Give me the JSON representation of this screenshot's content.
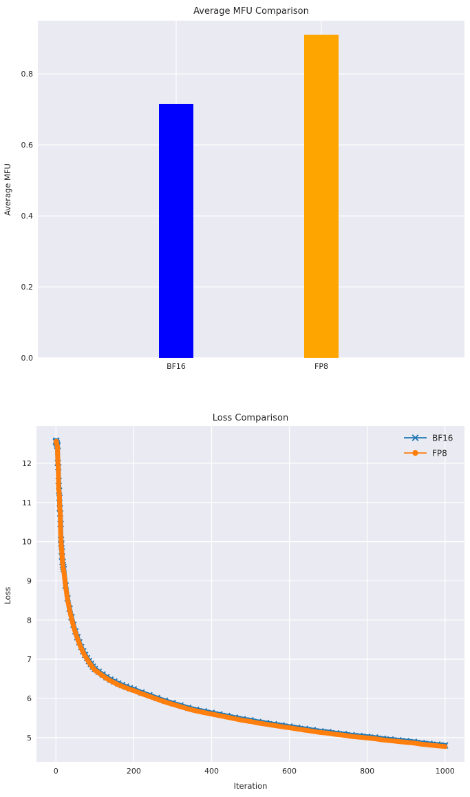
{
  "style": {
    "figure_bg": "#ffffff",
    "axes_bg": "#eaeaf2",
    "grid_color": "#ffffff",
    "text_color": "#262626",
    "bar_blue": "#0000ff",
    "bar_orange": "#ffa500",
    "line_blue": "#1f77b4",
    "line_orange": "#ff7f0e"
  },
  "chart_data": [
    {
      "type": "bar",
      "title": "Average MFU Comparison",
      "xlabel": "",
      "ylabel": "Average MFU",
      "categories": [
        "BF16",
        "FP8"
      ],
      "values": [
        0.715,
        0.91
      ],
      "bar_colors": [
        "#0000ff",
        "#ffa500"
      ],
      "yticks": [
        0.0,
        0.2,
        0.4,
        0.6,
        0.8
      ],
      "ytick_labels": [
        "0.0",
        "0.2",
        "0.4",
        "0.6",
        "0.8"
      ],
      "ylim": [
        0,
        0.95
      ],
      "grid": true,
      "legend": null
    },
    {
      "type": "line",
      "title": "Loss Comparison",
      "xlabel": "Iteration",
      "ylabel": "Loss",
      "xlim": [
        -50,
        1050
      ],
      "ylim": [
        4.38,
        12.95
      ],
      "xticks": [
        0,
        200,
        400,
        600,
        800,
        1000
      ],
      "yticks": [
        5,
        6,
        7,
        8,
        9,
        10,
        11,
        12
      ],
      "grid": true,
      "legend_position": "upper right",
      "x": [
        0,
        1,
        2,
        3,
        4,
        5,
        6,
        7,
        8,
        9,
        10,
        11,
        12,
        13,
        14,
        15,
        16,
        17,
        18,
        19,
        20,
        25,
        30,
        35,
        40,
        45,
        50,
        55,
        60,
        65,
        70,
        75,
        80,
        85,
        90,
        95,
        100,
        110,
        120,
        130,
        140,
        150,
        160,
        170,
        180,
        190,
        200,
        220,
        240,
        260,
        280,
        300,
        320,
        340,
        360,
        380,
        400,
        420,
        440,
        460,
        480,
        500,
        520,
        540,
        560,
        580,
        600,
        620,
        640,
        660,
        680,
        700,
        720,
        740,
        760,
        780,
        800,
        820,
        840,
        860,
        880,
        900,
        920,
        940,
        960,
        980,
        1000
      ],
      "series": [
        {
          "name": "BF16",
          "color": "#1f77b4",
          "marker": "x",
          "values": [
            12.55,
            12.58,
            12.52,
            12.48,
            12.44,
            12.01,
            11.9,
            11.55,
            11.3,
            11.12,
            10.85,
            10.72,
            10.45,
            10.05,
            9.95,
            9.75,
            9.62,
            9.48,
            9.4,
            9.35,
            9.3,
            8.88,
            8.55,
            8.29,
            8.07,
            7.88,
            7.71,
            7.56,
            7.43,
            7.31,
            7.2,
            7.11,
            7.03,
            6.95,
            6.88,
            6.81,
            6.75,
            6.68,
            6.61,
            6.54,
            6.48,
            6.43,
            6.38,
            6.34,
            6.3,
            6.26,
            6.23,
            6.15,
            6.08,
            6.01,
            5.94,
            5.88,
            5.82,
            5.76,
            5.71,
            5.67,
            5.63,
            5.59,
            5.55,
            5.51,
            5.47,
            5.44,
            5.4,
            5.37,
            5.34,
            5.31,
            5.28,
            5.25,
            5.22,
            5.19,
            5.16,
            5.14,
            5.11,
            5.09,
            5.06,
            5.04,
            5.02,
            5.0,
            4.97,
            4.95,
            4.93,
            4.91,
            4.89,
            4.86,
            4.84,
            4.82,
            4.8
          ]
        },
        {
          "name": "FP8",
          "color": "#ff7f0e",
          "marker": "o",
          "values": [
            12.55,
            12.56,
            12.5,
            12.46,
            12.42,
            12.02,
            11.88,
            11.32,
            11.28,
            11.15,
            10.82,
            10.76,
            10.2,
            10.1,
            9.86,
            9.78,
            9.6,
            9.46,
            9.36,
            9.3,
            9.26,
            8.85,
            8.52,
            8.26,
            8.04,
            7.85,
            7.68,
            7.53,
            7.4,
            7.28,
            7.17,
            7.08,
            7.0,
            6.92,
            6.85,
            6.78,
            6.72,
            6.65,
            6.58,
            6.51,
            6.45,
            6.4,
            6.35,
            6.31,
            6.27,
            6.23,
            6.2,
            6.12,
            6.05,
            5.98,
            5.91,
            5.85,
            5.79,
            5.73,
            5.68,
            5.64,
            5.6,
            5.56,
            5.52,
            5.48,
            5.44,
            5.41,
            5.37,
            5.34,
            5.31,
            5.28,
            5.25,
            5.22,
            5.19,
            5.16,
            5.13,
            5.11,
            5.08,
            5.06,
            5.03,
            5.01,
            4.99,
            4.97,
            4.94,
            4.92,
            4.9,
            4.88,
            4.86,
            4.83,
            4.81,
            4.79,
            4.77
          ]
        }
      ]
    }
  ]
}
